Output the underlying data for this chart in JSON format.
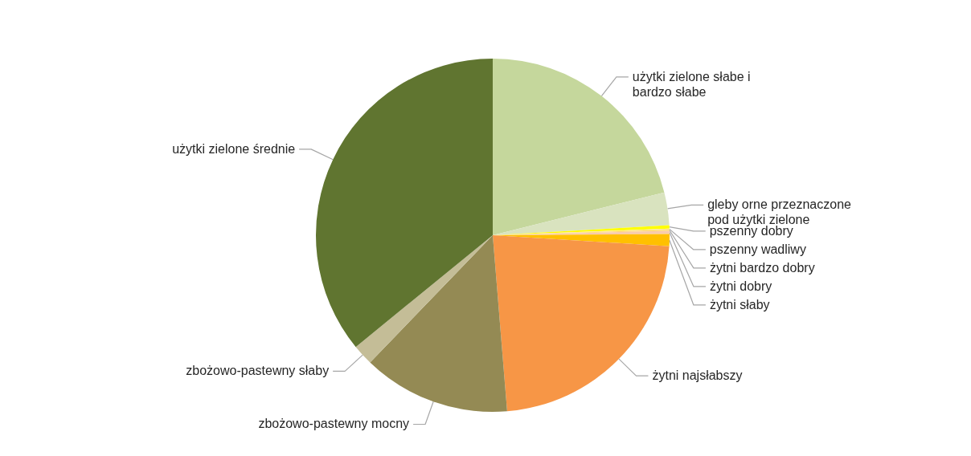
{
  "chart_data": {
    "type": "pie",
    "categories": [
      "użytki zielone słabe i bardzo słabe",
      "gleby orne przeznaczone pod użytki zielone",
      "pszenny dobry",
      "pszenny wadliwy",
      "żytni bardzo dobry",
      "żytni dobry",
      "żytni słaby",
      "żytni najsłabszy",
      "zbożowo-pastewny mocny",
      "zbożowo-pastewny słaby",
      "użytki zielone średnie"
    ],
    "values": [
      21.1,
      3.0,
      0.3,
      0.1,
      0.1,
      0.3,
      1.1,
      22.7,
      13.5,
      1.9,
      35.9
    ],
    "colors": [
      "#c5d79c",
      "#d9e3bf",
      "#ffff00",
      "#ffe699",
      "#ffd966",
      "#f8cbad",
      "#ffc000",
      "#f79646",
      "#948a54",
      "#c4bd97",
      "#607530"
    ]
  }
}
